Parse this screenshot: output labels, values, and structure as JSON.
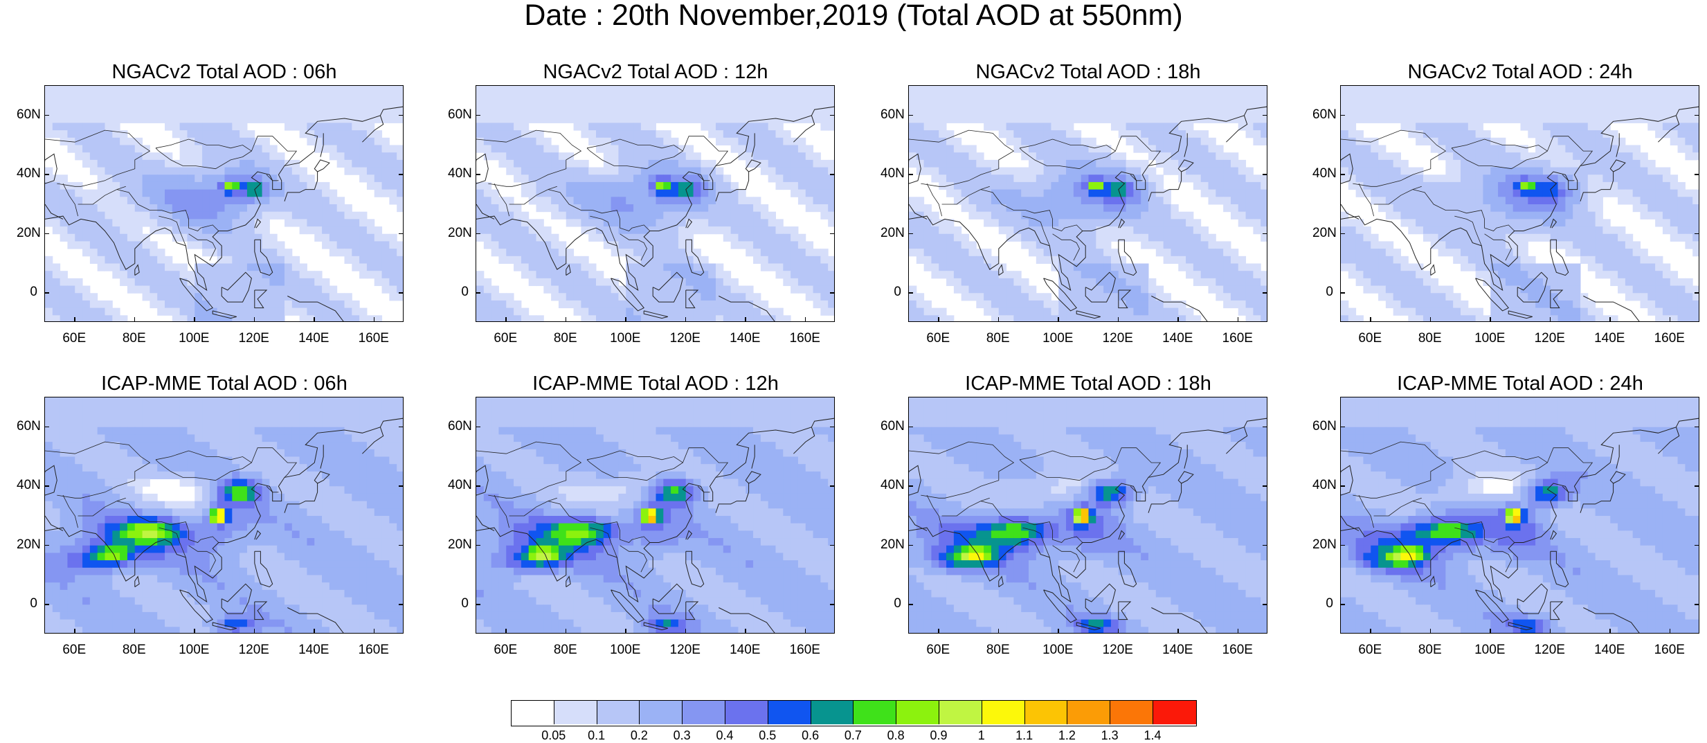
{
  "title": "Date : 20th November,2019 (Total AOD at 550nm)",
  "x_ticks": [
    "60E",
    "80E",
    "100E",
    "120E",
    "140E",
    "160E"
  ],
  "y_ticks": [
    "60N",
    "40N",
    "20N",
    "0"
  ],
  "map_extent": {
    "lon": [
      50,
      170
    ],
    "lat": [
      -10,
      70
    ]
  },
  "panels": [
    {
      "title": "NGACv2 Total AOD : 06h",
      "model": "NGACv2",
      "hour": "06h"
    },
    {
      "title": "NGACv2 Total AOD : 12h",
      "model": "NGACv2",
      "hour": "12h"
    },
    {
      "title": "NGACv2 Total AOD : 18h",
      "model": "NGACv2",
      "hour": "18h"
    },
    {
      "title": "NGACv2 Total AOD : 24h",
      "model": "NGACv2",
      "hour": "24h"
    },
    {
      "title": "ICAP-MME Total AOD : 06h",
      "model": "ICAP-MME",
      "hour": "06h"
    },
    {
      "title": "ICAP-MME Total AOD : 12h",
      "model": "ICAP-MME",
      "hour": "12h"
    },
    {
      "title": "ICAP-MME Total AOD : 18h",
      "model": "ICAP-MME",
      "hour": "18h"
    },
    {
      "title": "ICAP-MME Total AOD : 24h",
      "model": "ICAP-MME",
      "hour": "24h"
    }
  ],
  "colorbar": {
    "labels": [
      "0.05",
      "0.1",
      "0.2",
      "0.3",
      "0.4",
      "0.5",
      "0.6",
      "0.7",
      "0.8",
      "0.9",
      "1",
      "1.1",
      "1.2",
      "1.3",
      "1.4"
    ],
    "colors": [
      "#ffffff",
      "#d6defa",
      "#b7c6f7",
      "#9bb2f5",
      "#8596f2",
      "#6b72ee",
      "#1055f0",
      "#07948f",
      "#3fe11a",
      "#8cf20e",
      "#c0f542",
      "#fcf80a",
      "#fcc404",
      "#fb9c06",
      "#fb7607",
      "#fb1909"
    ]
  }
}
